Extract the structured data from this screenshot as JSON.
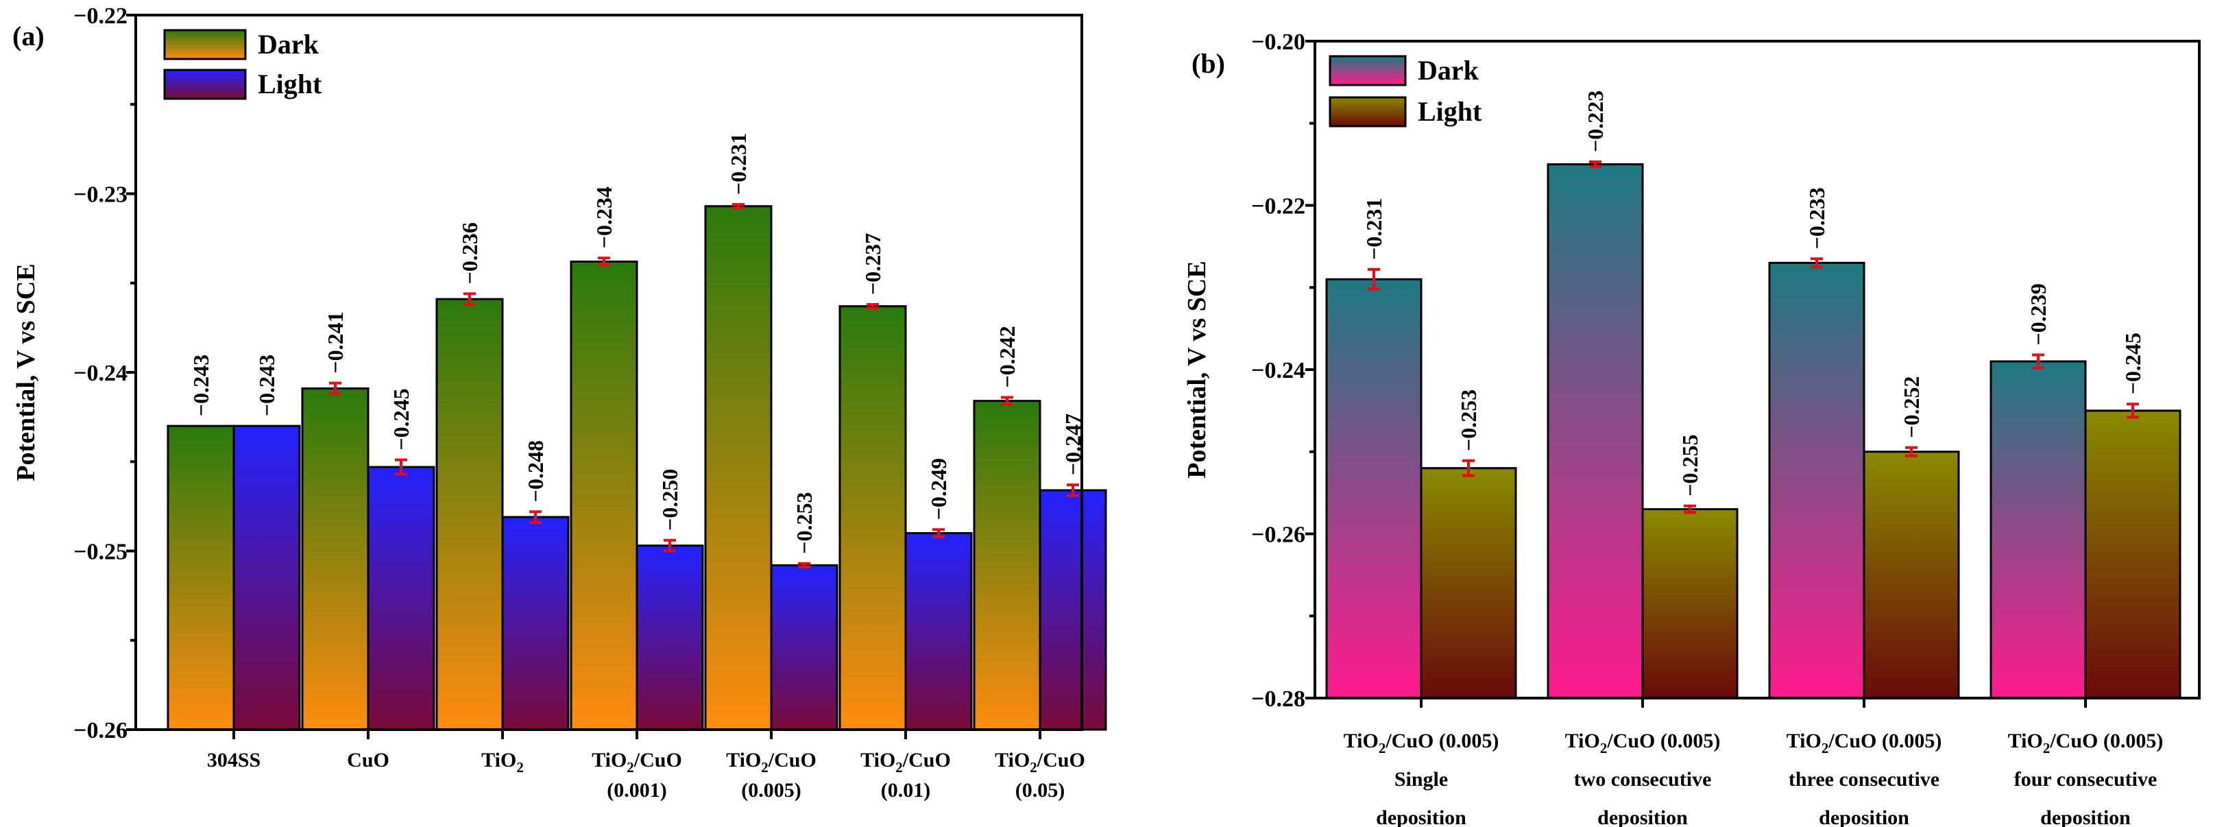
{
  "chart_data": [
    {
      "type": "bar",
      "panel_label": "(a)",
      "ylabel": "Potential, V vs SCE",
      "ylim": [
        -0.26,
        -0.22
      ],
      "yticks": [
        -0.22,
        -0.23,
        -0.24,
        -0.25,
        -0.26
      ],
      "ytick_labels": [
        "−0.22",
        "−0.23",
        "−0.24",
        "−0.25",
        "−0.26"
      ],
      "categories": [
        {
          "lines": [
            {
              "main": "304SS",
              "sub": ""
            }
          ]
        },
        {
          "lines": [
            {
              "main": "CuO",
              "sub": ""
            }
          ]
        },
        {
          "lines": [
            {
              "main": "TiO",
              "sub": "2",
              "after": ""
            }
          ]
        },
        {
          "lines": [
            {
              "main": "TiO",
              "sub": "2",
              "after": "/CuO"
            },
            {
              "main": "(0.001)",
              "sub": ""
            }
          ]
        },
        {
          "lines": [
            {
              "main": "TiO",
              "sub": "2",
              "after": "/CuO"
            },
            {
              "main": "(0.005)",
              "sub": ""
            }
          ]
        },
        {
          "lines": [
            {
              "main": "TiO",
              "sub": "2",
              "after": "/CuO"
            },
            {
              "main": "(0.01)",
              "sub": ""
            }
          ]
        },
        {
          "lines": [
            {
              "main": "TiO",
              "sub": "2",
              "after": "/CuO"
            },
            {
              "main": "(0.05)",
              "sub": ""
            }
          ]
        }
      ],
      "legend": {
        "position": "top-left",
        "entries": [
          "Dark",
          "Light"
        ]
      },
      "series": [
        {
          "name": "Dark",
          "values": [
            -0.243,
            -0.241,
            -0.236,
            -0.234,
            -0.231,
            -0.237,
            -0.242
          ],
          "bar_tops": [
            -0.243,
            -0.2409,
            -0.2359,
            -0.2338,
            -0.2307,
            -0.2363,
            -0.2416
          ],
          "errors": [
            0,
            0.0003,
            0.0003,
            0.0002,
            0.0001,
            0.0001,
            0.0002
          ],
          "labels": [
            "−0.243",
            "−0.241",
            "−0.236",
            "−0.234",
            "−0.231",
            "−0.237",
            "−0.242"
          ],
          "gradient": [
            "#2a7a0e",
            "#ff8c10"
          ]
        },
        {
          "name": "Light",
          "values": [
            -0.243,
            -0.245,
            -0.248,
            -0.25,
            -0.253,
            -0.249,
            -0.247
          ],
          "bar_tops": [
            -0.243,
            -0.2453,
            -0.2481,
            -0.2497,
            -0.2508,
            -0.249,
            -0.2466
          ],
          "errors": [
            0,
            0.0004,
            0.0003,
            0.0003,
            0.0001,
            0.0002,
            0.0003
          ],
          "labels": [
            "−0.243",
            "−0.245",
            "−0.248",
            "−0.250",
            "−0.253",
            "−0.249",
            "−0.247"
          ],
          "gradient": [
            "#2222ff",
            "#7a0a3a"
          ]
        }
      ]
    },
    {
      "type": "bar",
      "panel_label": "(b)",
      "ylabel": "Potential, V vs SCE",
      "ylim": [
        -0.28,
        -0.2
      ],
      "yticks": [
        -0.2,
        -0.22,
        -0.24,
        -0.26,
        -0.28
      ],
      "ytick_labels": [
        "−0.20",
        "−0.22",
        "−0.24",
        "−0.26",
        "−0.28"
      ],
      "categories": [
        {
          "lines": [
            {
              "main": "TiO",
              "sub": "2",
              "after": "/CuO (0.005)"
            },
            {
              "main": "Single",
              "sub": ""
            },
            {
              "main": "deposition",
              "sub": ""
            }
          ]
        },
        {
          "lines": [
            {
              "main": "TiO",
              "sub": "2",
              "after": "/CuO (0.005)"
            },
            {
              "main": "two consecutive",
              "sub": ""
            },
            {
              "main": "deposition",
              "sub": ""
            }
          ]
        },
        {
          "lines": [
            {
              "main": "TiO",
              "sub": "2",
              "after": "/CuO (0.005)"
            },
            {
              "main": "three consecutive",
              "sub": ""
            },
            {
              "main": "deposition",
              "sub": ""
            }
          ]
        },
        {
          "lines": [
            {
              "main": "TiO",
              "sub": "2",
              "after": "/CuO (0.005)"
            },
            {
              "main": "four consecutive",
              "sub": ""
            },
            {
              "main": "deposition",
              "sub": ""
            }
          ]
        }
      ],
      "legend": {
        "position": "top-left",
        "entries": [
          "Dark",
          "Light"
        ]
      },
      "series": [
        {
          "name": "Dark",
          "values": [
            -0.231,
            -0.223,
            -0.233,
            -0.239
          ],
          "bar_tops": [
            -0.229,
            -0.215,
            -0.227,
            -0.239
          ],
          "errors": [
            0.0012,
            0.0003,
            0.0005,
            0.0008
          ],
          "labels": [
            "−0.231",
            "−0.223",
            "−0.233",
            "−0.239"
          ],
          "gradient": [
            "#1e7a82",
            "#ff1a8c"
          ]
        },
        {
          "name": "Light",
          "values": [
            -0.253,
            -0.255,
            -0.252,
            -0.245
          ],
          "bar_tops": [
            -0.252,
            -0.257,
            -0.25,
            -0.245
          ],
          "errors": [
            0.0009,
            0.0004,
            0.0005,
            0.0008
          ],
          "labels": [
            "−0.253",
            "−0.255",
            "−0.252",
            "−0.245"
          ],
          "gradient": [
            "#8a8a00",
            "#6a0a0a"
          ]
        }
      ]
    }
  ]
}
